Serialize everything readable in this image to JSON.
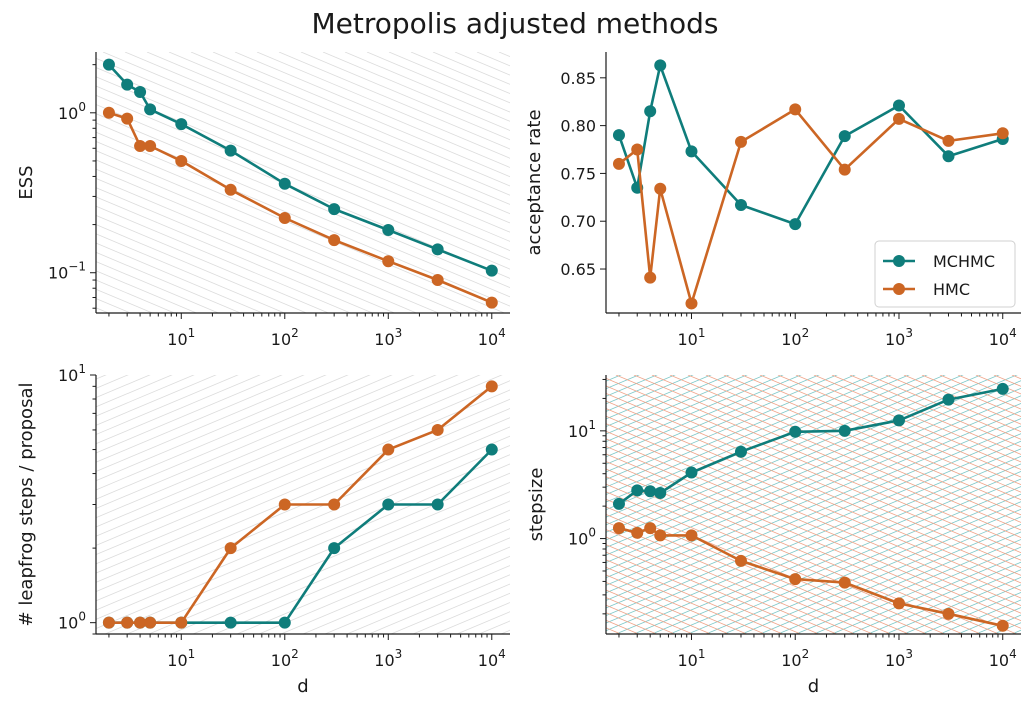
{
  "figure": {
    "title": "Metropolis adjusted methods"
  },
  "colors": {
    "MCHMC": "#0f7d7b",
    "HMC": "#cc6624",
    "guide_gray": "#dcdcdc",
    "guide_teal": "#7ec8c8",
    "guide_orange": "#f0a58a"
  },
  "legend": {
    "entries": [
      "MCHMC",
      "HMC"
    ]
  },
  "chart_data": [
    {
      "type": "line",
      "panel": "top-left",
      "ylabel": "ESS",
      "xlabel": "",
      "xscale": "log",
      "yscale": "log",
      "xlim": [
        1.5,
        15000
      ],
      "ylim": [
        0.056,
        2.4
      ],
      "x": [
        2,
        3,
        4,
        5,
        10,
        30,
        100,
        300,
        1000,
        3000,
        10000
      ],
      "series": [
        {
          "name": "MCHMC",
          "values": [
            2.0,
            1.5,
            1.35,
            1.05,
            0.85,
            0.58,
            0.36,
            0.25,
            0.185,
            0.14,
            0.103
          ]
        },
        {
          "name": "HMC",
          "values": [
            1.0,
            0.92,
            0.62,
            0.62,
            0.5,
            0.33,
            0.22,
            0.16,
            0.118,
            0.09,
            0.065
          ]
        }
      ],
      "xticks": [
        "10^1",
        "10^2",
        "10^3",
        "10^4"
      ],
      "yticks": [
        "10^0",
        "10^-1"
      ]
    },
    {
      "type": "line",
      "panel": "top-right",
      "ylabel": "acceptance rate",
      "xlabel": "",
      "xscale": "log",
      "yscale": "linear",
      "xlim": [
        1.5,
        15000
      ],
      "ylim": [
        0.604,
        0.877
      ],
      "x": [
        2,
        3,
        4,
        5,
        10,
        30,
        100,
        300,
        1000,
        3000,
        10000
      ],
      "series": [
        {
          "name": "MCHMC",
          "values": [
            0.79,
            0.735,
            0.815,
            0.863,
            0.773,
            0.717,
            0.697,
            0.789,
            0.821,
            0.768,
            0.786
          ]
        },
        {
          "name": "HMC",
          "values": [
            0.76,
            0.775,
            0.641,
            0.734,
            0.614,
            0.783,
            0.817,
            0.754,
            0.807,
            0.784,
            0.792
          ]
        }
      ],
      "xticks": [
        "10^1",
        "10^2",
        "10^3",
        "10^4"
      ],
      "yticks": [
        "0.65",
        "0.70",
        "0.75",
        "0.80",
        "0.85"
      ],
      "legend_position": "lower right"
    },
    {
      "type": "line",
      "panel": "bottom-left",
      "ylabel": "# leapfrog steps / proposal",
      "xlabel": "d",
      "xscale": "log",
      "yscale": "log",
      "xlim": [
        1.5,
        15000
      ],
      "ylim": [
        0.9,
        10
      ],
      "x": [
        2,
        3,
        4,
        5,
        10,
        30,
        100,
        300,
        1000,
        3000,
        10000
      ],
      "series": [
        {
          "name": "MCHMC",
          "values": [
            1,
            1,
            1,
            1,
            1,
            1,
            1,
            2,
            3,
            3,
            5
          ]
        },
        {
          "name": "HMC",
          "values": [
            1,
            1,
            1,
            1,
            1,
            2,
            3,
            3,
            5,
            6,
            9
          ]
        }
      ],
      "xticks": [
        "10^1",
        "10^2",
        "10^3",
        "10^4"
      ],
      "yticks": [
        "10^1",
        "10^0"
      ]
    },
    {
      "type": "line",
      "panel": "bottom-right",
      "ylabel": "stepsize",
      "xlabel": "d",
      "xscale": "log",
      "yscale": "log",
      "xlim": [
        1.5,
        15000
      ],
      "ylim": [
        0.13,
        33
      ],
      "x": [
        2,
        3,
        4,
        5,
        10,
        30,
        100,
        300,
        1000,
        3000,
        10000
      ],
      "series": [
        {
          "name": "MCHMC",
          "values": [
            2.1,
            2.8,
            2.75,
            2.65,
            4.1,
            6.4,
            9.8,
            10.0,
            12.5,
            19.5,
            24.5
          ]
        },
        {
          "name": "HMC",
          "values": [
            1.25,
            1.13,
            1.25,
            1.07,
            1.07,
            0.62,
            0.42,
            0.39,
            0.25,
            0.2,
            0.155
          ]
        }
      ],
      "xticks": [
        "10^1",
        "10^2",
        "10^3",
        "10^4"
      ],
      "yticks": [
        "10^1",
        "10^0"
      ]
    }
  ]
}
